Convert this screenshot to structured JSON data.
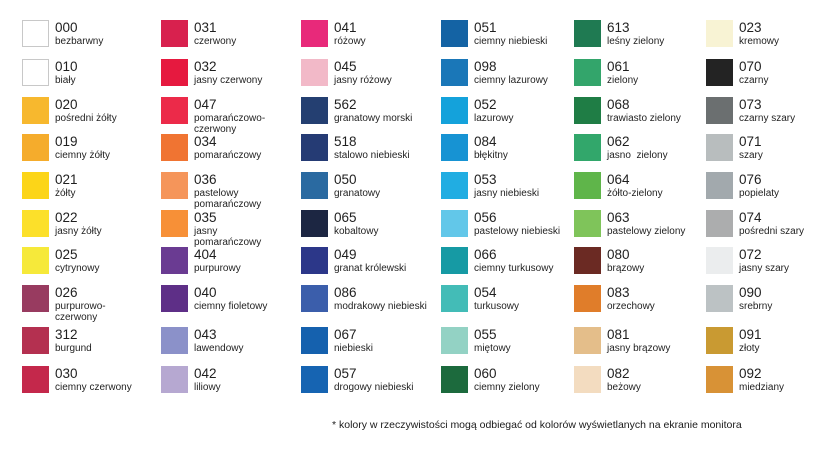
{
  "columns": [
    [
      {
        "code": "000",
        "name": "bezbarwny",
        "color": "#ffffff",
        "outline": true
      },
      {
        "code": "010",
        "name": "biały",
        "color": "#ffffff",
        "outline": true
      },
      {
        "code": "020",
        "name": "pośredni żółty",
        "color": "#f7b82e"
      },
      {
        "code": "019",
        "name": "ciemny żółty",
        "color": "#f5ac2c"
      },
      {
        "code": "021",
        "name": "żółty",
        "color": "#fcd518"
      },
      {
        "code": "022",
        "name": "jasny żółty",
        "color": "#fce02a"
      },
      {
        "code": "025",
        "name": "cytrynowy",
        "color": "#f6e93a"
      },
      {
        "code": "026",
        "name": "purpurowo-\nczerwony",
        "color": "#983b60"
      },
      {
        "code": "312",
        "name": "burgund",
        "color": "#b43050"
      },
      {
        "code": "030",
        "name": "ciemny czerwony",
        "color": "#c4284b"
      }
    ],
    [
      {
        "code": "031",
        "name": "czerwony",
        "color": "#d8214e"
      },
      {
        "code": "032",
        "name": "jasny czerwony",
        "color": "#e6193f"
      },
      {
        "code": "047",
        "name": "pomarańczowo-\nczerwony",
        "color": "#ec2a49"
      },
      {
        "code": "034",
        "name": "pomarańczowy",
        "color": "#f07432"
      },
      {
        "code": "036",
        "name": "pastelowy\npomarańczowy",
        "color": "#f5955a"
      },
      {
        "code": "035",
        "name": "jasny\npomarańczowy",
        "color": "#f79037"
      },
      {
        "code": "404",
        "name": "purpurowy",
        "color": "#6a3b92"
      },
      {
        "code": "040",
        "name": "ciemny fioletowy",
        "color": "#5e2f87"
      },
      {
        "code": "043",
        "name": "lawendowy",
        "color": "#8b91c9"
      },
      {
        "code": "042",
        "name": "liliowy",
        "color": "#b6a8d1"
      }
    ],
    [
      {
        "code": "041",
        "name": "różowy",
        "color": "#e8297a"
      },
      {
        "code": "045",
        "name": "jasny różowy",
        "color": "#f2b9c8"
      },
      {
        "code": "562",
        "name": "granatowy morski",
        "color": "#243f71"
      },
      {
        "code": "518",
        "name": "stalowo niebieski",
        "color": "#253b74"
      },
      {
        "code": "050",
        "name": "granatowy",
        "color": "#2a6aa1"
      },
      {
        "code": "065",
        "name": "kobaltowy",
        "color": "#1c2642"
      },
      {
        "code": "049",
        "name": "granat królewski",
        "color": "#2c3789"
      },
      {
        "code": "086",
        "name": "modrakowy niebieski",
        "color": "#3b5eab"
      },
      {
        "code": "067",
        "name": "niebieski",
        "color": "#1561ae"
      },
      {
        "code": "057",
        "name": "drogowy niebieski",
        "color": "#1664b2"
      }
    ],
    [
      {
        "code": "051",
        "name": "ciemny niebieski",
        "color": "#1463a4"
      },
      {
        "code": "098",
        "name": "ciemny lazurowy",
        "color": "#1a77b8"
      },
      {
        "code": "052",
        "name": "lazurowy",
        "color": "#14a2db"
      },
      {
        "code": "084",
        "name": "błękitny",
        "color": "#1793d3"
      },
      {
        "code": "053",
        "name": "jasny niebieski",
        "color": "#21ade2"
      },
      {
        "code": "056",
        "name": "pastelowy niebieski",
        "color": "#62c7e9"
      },
      {
        "code": "066",
        "name": "ciemny turkusowy",
        "color": "#169aa4"
      },
      {
        "code": "054",
        "name": "turkusowy",
        "color": "#43bcb7"
      },
      {
        "code": "055",
        "name": "miętowy",
        "color": "#93d2c4"
      },
      {
        "code": "060",
        "name": "ciemny zielony",
        "color": "#1c6a3d"
      }
    ],
    [
      {
        "code": "613",
        "name": "leśny zielony",
        "color": "#1f7a52"
      },
      {
        "code": "061",
        "name": "zielony",
        "color": "#33a56b"
      },
      {
        "code": "068",
        "name": "trawiasto zielony",
        "color": "#1f7d45"
      },
      {
        "code": "062",
        "name": "jasno  zielony",
        "color": "#32a76b"
      },
      {
        "code": "064",
        "name": "żółto-zielony",
        "color": "#5fb54a"
      },
      {
        "code": "063",
        "name": "pastelowy zielony",
        "color": "#7fc45a"
      },
      {
        "code": "080",
        "name": "brązowy",
        "color": "#6b2a23"
      },
      {
        "code": "083",
        "name": "orzechowy",
        "color": "#e07d2a"
      },
      {
        "code": "081",
        "name": "jasny brązowy",
        "color": "#e4be8a"
      },
      {
        "code": "082",
        "name": "beżowy",
        "color": "#f3dcc0"
      }
    ],
    [
      {
        "code": "023",
        "name": "kremowy",
        "color": "#f8f3d4"
      },
      {
        "code": "070",
        "name": "czarny",
        "color": "#232323"
      },
      {
        "code": "073",
        "name": "czarny szary",
        "color": "#6b6f70"
      },
      {
        "code": "071",
        "name": "szary",
        "color": "#b8bdbe"
      },
      {
        "code": "076",
        "name": "popielaty",
        "color": "#a2a9ad"
      },
      {
        "code": "074",
        "name": "pośredni szary",
        "color": "#acadae"
      },
      {
        "code": "072",
        "name": "jasny szary",
        "color": "#ebedee"
      },
      {
        "code": "090",
        "name": "srebrny",
        "color": "#bcc2c4"
      },
      {
        "code": "091",
        "name": "złoty",
        "color": "#c99a32"
      },
      {
        "code": "092",
        "name": "miedziany",
        "color": "#d89236"
      }
    ]
  ],
  "footnote": "* kolory w rzeczywistości mogą odbiegać od kolorów wyświetlanych na ekranie monitora"
}
